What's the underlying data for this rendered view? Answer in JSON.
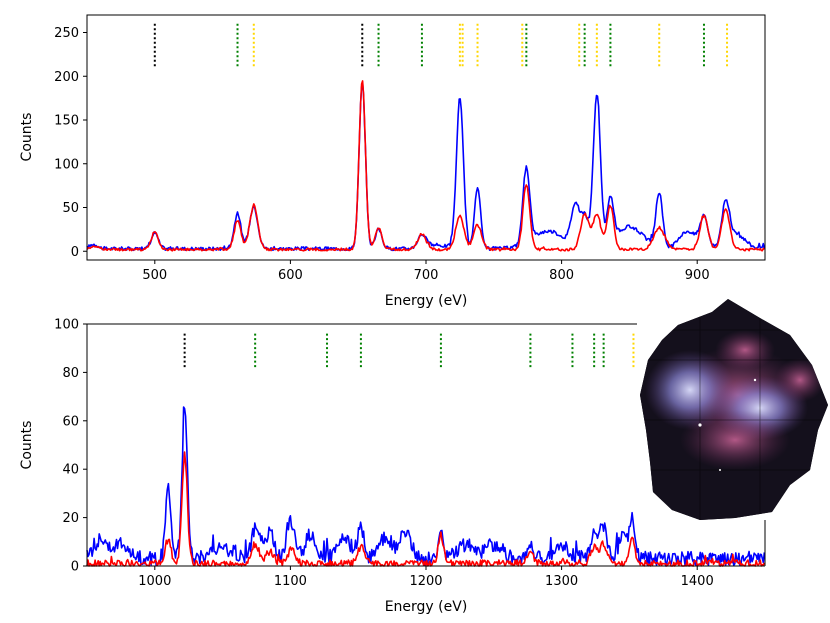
{
  "colors": {
    "blue": "#0000ff",
    "red": "#ff0000",
    "black": "#000000",
    "green": "#008000",
    "gold": "#ffd700"
  },
  "chart_data": [
    {
      "type": "line",
      "xlabel": "Energy (eV)",
      "ylabel": "Counts",
      "xlim": [
        450,
        950
      ],
      "ylim": [
        -10,
        270
      ],
      "xticks": [
        500,
        600,
        700,
        800,
        900
      ],
      "yticks": [
        0,
        50,
        100,
        150,
        200,
        250
      ],
      "xtick_labels": [
        "500",
        "600",
        "700",
        "800",
        "900"
      ],
      "ytick_labels": [
        "0",
        "50",
        "100",
        "150",
        "200",
        "250"
      ],
      "line_markers": {
        "y_range": [
          210,
          260
        ],
        "black": [
          500,
          653
        ],
        "green": [
          561,
          665,
          697,
          774,
          817,
          836,
          905
        ],
        "gold": [
          573,
          725,
          727,
          738,
          771,
          813,
          826,
          872,
          922
        ]
      },
      "series": [
        {
          "name": "blue",
          "color": "#0000ff",
          "baseline": 3,
          "noise": 2,
          "peaks": [
            [
              455,
              5,
              3
            ],
            [
              500,
              18,
              2.5
            ],
            [
              561,
              40,
              2.5
            ],
            [
              573,
              48,
              3
            ],
            [
              653,
              190,
              2.3
            ],
            [
              665,
              22,
              2.5
            ],
            [
              697,
              15,
              3
            ],
            [
              708,
              4,
              8
            ],
            [
              725,
              172,
              2.6
            ],
            [
              738,
              70,
              2.2
            ],
            [
              774,
              85,
              2.5
            ],
            [
              790,
              20,
              12
            ],
            [
              810,
              45,
              3
            ],
            [
              817,
              35,
              3
            ],
            [
              826,
              175,
              2.6
            ],
            [
              836,
              50,
              2.5
            ],
            [
              850,
              25,
              10
            ],
            [
              872,
              62,
              2.5
            ],
            [
              893,
              20,
              6
            ],
            [
              905,
              35,
              3
            ],
            [
              921,
              50,
              3
            ],
            [
              930,
              15,
              6
            ]
          ]
        },
        {
          "name": "red",
          "color": "#ff0000",
          "baseline": 2,
          "noise": 1.5,
          "peaks": [
            [
              455,
              4,
              3
            ],
            [
              500,
              20,
              2.5
            ],
            [
              561,
              33,
              2.5
            ],
            [
              573,
              50,
              3
            ],
            [
              653,
              195,
              2.3
            ],
            [
              665,
              24,
              2.5
            ],
            [
              697,
              18,
              3
            ],
            [
              725,
              38,
              3
            ],
            [
              738,
              28,
              3
            ],
            [
              774,
              75,
              2.5
            ],
            [
              817,
              40,
              3
            ],
            [
              826,
              40,
              3
            ],
            [
              836,
              50,
              2.5
            ],
            [
              872,
              25,
              4
            ],
            [
              905,
              38,
              3
            ],
            [
              921,
              45,
              3
            ]
          ]
        }
      ]
    },
    {
      "type": "line",
      "xlabel": "Energy (eV)",
      "ylabel": "Counts",
      "xlim": [
        950,
        1450
      ],
      "ylim": [
        0,
        100
      ],
      "xticks": [
        1000,
        1100,
        1200,
        1300,
        1400
      ],
      "yticks": [
        0,
        20,
        40,
        60,
        80,
        100
      ],
      "xtick_labels": [
        "1000",
        "1100",
        "1200",
        "1300",
        "1400"
      ],
      "ytick_labels": [
        "0",
        "20",
        "40",
        "60",
        "80",
        "100"
      ],
      "line_markers": {
        "y_range": [
          82,
          96
        ],
        "black": [
          1022
        ],
        "green": [
          1074,
          1127,
          1152,
          1211,
          1277,
          1308,
          1324,
          1331
        ],
        "gold": [
          1353
        ]
      },
      "series": [
        {
          "name": "blue",
          "color": "#0000ff",
          "baseline": 3,
          "noise": 3,
          "peaks": [
            [
              960,
              8,
              5
            ],
            [
              975,
              6,
              6
            ],
            [
              1010,
              30,
              2
            ],
            [
              1022,
              60,
              2
            ],
            [
              1050,
              4,
              10
            ],
            [
              1075,
              14,
              3
            ],
            [
              1085,
              11,
              3
            ],
            [
              1100,
              16,
              3
            ],
            [
              1115,
              10,
              4
            ],
            [
              1140,
              8,
              5
            ],
            [
              1152,
              12,
              2.5
            ],
            [
              1170,
              9,
              5
            ],
            [
              1185,
              11,
              4
            ],
            [
              1211,
              11,
              2
            ],
            [
              1230,
              6,
              6
            ],
            [
              1250,
              6,
              6
            ],
            [
              1277,
              7,
              2
            ],
            [
              1300,
              5,
              6
            ],
            [
              1324,
              10,
              3
            ],
            [
              1331,
              12,
              3
            ],
            [
              1345,
              9,
              3
            ],
            [
              1352,
              17,
              2
            ]
          ]
        },
        {
          "name": "red",
          "color": "#ff0000",
          "baseline": 1,
          "noise": 1.5,
          "peaks": [
            [
              1010,
              10,
              2
            ],
            [
              1022,
              45,
              2
            ],
            [
              1074,
              8,
              2.5
            ],
            [
              1085,
              5,
              3
            ],
            [
              1101,
              7,
              2.5
            ],
            [
              1152,
              7,
              2.5
            ],
            [
              1211,
              12,
              2
            ],
            [
              1277,
              5,
              2
            ],
            [
              1324,
              7,
              2.5
            ],
            [
              1331,
              8,
              2.5
            ],
            [
              1352,
              12,
              2
            ]
          ]
        }
      ]
    }
  ]
}
